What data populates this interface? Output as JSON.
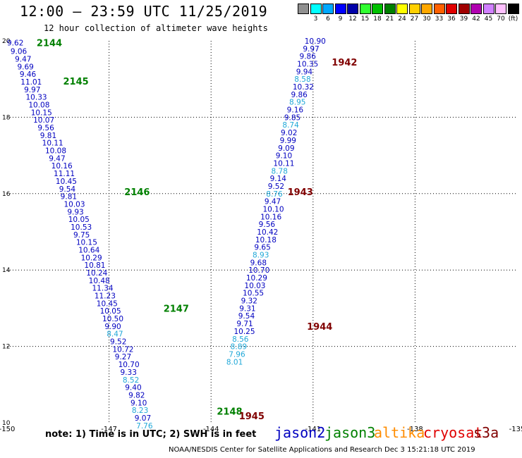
{
  "title": "12:00 – 23:59 UTC 11/25/2019",
  "subtitle": "12 hour collection of altimeter wave heights",
  "scale": {
    "unit": "(ft)",
    "swatches": [
      {
        "color": "#909090",
        "label": ""
      },
      {
        "color": "#00ffff",
        "label": "3"
      },
      {
        "color": "#00a8ff",
        "label": "6"
      },
      {
        "color": "#0000ff",
        "label": "9"
      },
      {
        "color": "#0000a8",
        "label": "12"
      },
      {
        "color": "#30ff30",
        "label": "15"
      },
      {
        "color": "#00c000",
        "label": "18"
      },
      {
        "color": "#008000",
        "label": "21"
      },
      {
        "color": "#ffff00",
        "label": "24"
      },
      {
        "color": "#ffd000",
        "label": "27"
      },
      {
        "color": "#ffa800",
        "label": "30"
      },
      {
        "color": "#ff6000",
        "label": "33"
      },
      {
        "color": "#e00000",
        "label": "36"
      },
      {
        "color": "#a00000",
        "label": "39"
      },
      {
        "color": "#b000b0",
        "label": "42"
      },
      {
        "color": "#d080ff",
        "label": "45"
      },
      {
        "color": "#ffc0ff",
        "label": "70"
      },
      {
        "color": "#000000",
        "label": "(ft)"
      }
    ]
  },
  "note": "note:  1) Time is in UTC;  2) SWH is in feet",
  "footer": "NOAA/NESDIS Center for Satellite Applications and Research    Dec  3 15:21:18 UTC 2019",
  "legend": [
    {
      "label": "jason2",
      "color": "#0000c0"
    },
    {
      "label": "jason3",
      "color": "#008000"
    },
    {
      "label": "altika",
      "color": "#ff8c00"
    },
    {
      "label": "cryosat",
      "color": "#e00000"
    },
    {
      "label": "s3a",
      "color": "#800000"
    }
  ],
  "chart_data": {
    "type": "scatter",
    "xlim": [
      -150,
      -135
    ],
    "ylim": [
      10,
      20
    ],
    "xticks": [
      "-150",
      "-147",
      "-144",
      "-141",
      "-138",
      "-135"
    ],
    "yticks": [
      "10",
      "12",
      "14",
      "16",
      "18",
      "20"
    ],
    "grid": true,
    "colors": {
      "dark": "#0000c0",
      "light": "#20a8d8",
      "time_track_left": "#008000",
      "time_track_right": "#800000"
    },
    "time_labels": [
      {
        "label": "2144",
        "lon": -149.13,
        "lat": 19.95,
        "color": "#008000"
      },
      {
        "label": "2145",
        "lon": -148.35,
        "lat": 18.95,
        "color": "#008000"
      },
      {
        "label": "2146",
        "lon": -146.55,
        "lat": 16.05,
        "color": "#008000"
      },
      {
        "label": "2147",
        "lon": -145.4,
        "lat": 13.0,
        "color": "#008000"
      },
      {
        "label": "2148",
        "lon": -143.83,
        "lat": 10.3,
        "color": "#008000"
      },
      {
        "label": "1942",
        "lon": -140.45,
        "lat": 19.45,
        "color": "#800000"
      },
      {
        "label": "1943",
        "lon": -141.75,
        "lat": 16.05,
        "color": "#800000"
      },
      {
        "label": "1944",
        "lon": -141.18,
        "lat": 12.53,
        "color": "#800000"
      },
      {
        "label": "1945",
        "lon": -143.18,
        "lat": 10.18,
        "color": "#800000"
      }
    ],
    "series": [
      {
        "name": "jason3",
        "points": [
          {
            "v": "9.62",
            "lon": -150.0,
            "lat": 19.95,
            "c": "dark"
          },
          {
            "v": "9.06",
            "lon": -149.9,
            "lat": 19.73,
            "c": "dark"
          },
          {
            "v": "9.47",
            "lon": -149.77,
            "lat": 19.53,
            "c": "dark"
          },
          {
            "v": "9.69",
            "lon": -149.7,
            "lat": 19.33,
            "c": "dark"
          },
          {
            "v": "9.46",
            "lon": -149.63,
            "lat": 19.13,
            "c": "dark"
          },
          {
            "v": "11.01",
            "lon": -149.6,
            "lat": 18.93,
            "c": "dark"
          },
          {
            "v": "9.97",
            "lon": -149.5,
            "lat": 18.73,
            "c": "dark"
          },
          {
            "v": "10.33",
            "lon": -149.45,
            "lat": 18.53,
            "c": "dark"
          },
          {
            "v": "10.08",
            "lon": -149.37,
            "lat": 18.33,
            "c": "dark"
          },
          {
            "v": "10.15",
            "lon": -149.3,
            "lat": 18.13,
            "c": "dark"
          },
          {
            "v": "10.07",
            "lon": -149.23,
            "lat": 17.93,
            "c": "dark"
          },
          {
            "v": "9.56",
            "lon": -149.1,
            "lat": 17.73,
            "c": "dark"
          },
          {
            "v": "9.81",
            "lon": -149.03,
            "lat": 17.53,
            "c": "dark"
          },
          {
            "v": "10.11",
            "lon": -148.97,
            "lat": 17.33,
            "c": "dark"
          },
          {
            "v": "10.08",
            "lon": -148.88,
            "lat": 17.13,
            "c": "dark"
          },
          {
            "v": "9.47",
            "lon": -148.77,
            "lat": 16.93,
            "c": "dark"
          },
          {
            "v": "10.16",
            "lon": -148.7,
            "lat": 16.73,
            "c": "dark"
          },
          {
            "v": "11.11",
            "lon": -148.63,
            "lat": 16.53,
            "c": "dark"
          },
          {
            "v": "10.45",
            "lon": -148.57,
            "lat": 16.33,
            "c": "dark"
          },
          {
            "v": "9.54",
            "lon": -148.47,
            "lat": 16.13,
            "c": "dark"
          },
          {
            "v": "9.81",
            "lon": -148.43,
            "lat": 15.93,
            "c": "dark"
          },
          {
            "v": "10.03",
            "lon": -148.33,
            "lat": 15.73,
            "c": "dark"
          },
          {
            "v": "9.93",
            "lon": -148.23,
            "lat": 15.53,
            "c": "dark"
          },
          {
            "v": "10.05",
            "lon": -148.2,
            "lat": 15.33,
            "c": "dark"
          },
          {
            "v": "10.53",
            "lon": -148.13,
            "lat": 15.13,
            "c": "dark"
          },
          {
            "v": "9.75",
            "lon": -148.05,
            "lat": 14.93,
            "c": "dark"
          },
          {
            "v": "10.15",
            "lon": -147.97,
            "lat": 14.73,
            "c": "dark"
          },
          {
            "v": "10.64",
            "lon": -147.9,
            "lat": 14.53,
            "c": "dark"
          },
          {
            "v": "10.29",
            "lon": -147.83,
            "lat": 14.33,
            "c": "dark"
          },
          {
            "v": "10.81",
            "lon": -147.73,
            "lat": 14.13,
            "c": "dark"
          },
          {
            "v": "10.24",
            "lon": -147.67,
            "lat": 13.93,
            "c": "dark"
          },
          {
            "v": "10.48",
            "lon": -147.6,
            "lat": 13.73,
            "c": "dark"
          },
          {
            "v": "11.34",
            "lon": -147.5,
            "lat": 13.53,
            "c": "dark"
          },
          {
            "v": "11.23",
            "lon": -147.43,
            "lat": 13.33,
            "c": "dark"
          },
          {
            "v": "10.45",
            "lon": -147.37,
            "lat": 13.13,
            "c": "dark"
          },
          {
            "v": "10.05",
            "lon": -147.27,
            "lat": 12.93,
            "c": "dark"
          },
          {
            "v": "10.50",
            "lon": -147.2,
            "lat": 12.73,
            "c": "dark"
          },
          {
            "v": "9.90",
            "lon": -147.13,
            "lat": 12.53,
            "c": "dark"
          },
          {
            "v": "8.47",
            "lon": -147.07,
            "lat": 12.33,
            "c": "light"
          },
          {
            "v": "9.52",
            "lon": -146.97,
            "lat": 12.13,
            "c": "dark"
          },
          {
            "v": "10.72",
            "lon": -146.9,
            "lat": 11.93,
            "c": "dark"
          },
          {
            "v": "9.27",
            "lon": -146.83,
            "lat": 11.73,
            "c": "dark"
          },
          {
            "v": "10.70",
            "lon": -146.73,
            "lat": 11.53,
            "c": "dark"
          },
          {
            "v": "9.33",
            "lon": -146.67,
            "lat": 11.33,
            "c": "dark"
          },
          {
            "v": "8.52",
            "lon": -146.6,
            "lat": 11.13,
            "c": "light"
          },
          {
            "v": "9.40",
            "lon": -146.53,
            "lat": 10.93,
            "c": "dark"
          },
          {
            "v": "9.82",
            "lon": -146.43,
            "lat": 10.73,
            "c": "dark"
          },
          {
            "v": "9.10",
            "lon": -146.37,
            "lat": 10.53,
            "c": "dark"
          },
          {
            "v": "8.23",
            "lon": -146.33,
            "lat": 10.33,
            "c": "light"
          },
          {
            "v": "9.07",
            "lon": -146.25,
            "lat": 10.13,
            "c": "dark"
          },
          {
            "v": "7.76",
            "lon": -146.2,
            "lat": 9.93,
            "c": "light"
          }
        ]
      },
      {
        "name": "s3a",
        "points": [
          {
            "v": "10.90",
            "lon": -141.25,
            "lat": 20.0,
            "c": "dark"
          },
          {
            "v": "9.97",
            "lon": -141.3,
            "lat": 19.8,
            "c": "dark"
          },
          {
            "v": "9.86",
            "lon": -141.4,
            "lat": 19.6,
            "c": "dark"
          },
          {
            "v": "10.35",
            "lon": -141.47,
            "lat": 19.4,
            "c": "dark"
          },
          {
            "v": "9.94",
            "lon": -141.5,
            "lat": 19.2,
            "c": "dark"
          },
          {
            "v": "8.58",
            "lon": -141.55,
            "lat": 19.0,
            "c": "light"
          },
          {
            "v": "10.32",
            "lon": -141.6,
            "lat": 18.8,
            "c": "dark"
          },
          {
            "v": "9.86",
            "lon": -141.65,
            "lat": 18.6,
            "c": "dark"
          },
          {
            "v": "8.95",
            "lon": -141.7,
            "lat": 18.4,
            "c": "light"
          },
          {
            "v": "9.16",
            "lon": -141.77,
            "lat": 18.2,
            "c": "dark"
          },
          {
            "v": "9.85",
            "lon": -141.85,
            "lat": 18.0,
            "c": "dark"
          },
          {
            "v": "8.74",
            "lon": -141.9,
            "lat": 17.8,
            "c": "light"
          },
          {
            "v": "9.02",
            "lon": -141.95,
            "lat": 17.6,
            "c": "dark"
          },
          {
            "v": "9.99",
            "lon": -141.98,
            "lat": 17.4,
            "c": "dark"
          },
          {
            "v": "9.09",
            "lon": -142.03,
            "lat": 17.2,
            "c": "dark"
          },
          {
            "v": "9.10",
            "lon": -142.1,
            "lat": 17.0,
            "c": "dark"
          },
          {
            "v": "10.11",
            "lon": -142.17,
            "lat": 16.8,
            "c": "dark"
          },
          {
            "v": "8.78",
            "lon": -142.23,
            "lat": 16.6,
            "c": "light"
          },
          {
            "v": "9.14",
            "lon": -142.27,
            "lat": 16.4,
            "c": "dark"
          },
          {
            "v": "9.52",
            "lon": -142.33,
            "lat": 16.2,
            "c": "dark"
          },
          {
            "v": "8.76",
            "lon": -142.38,
            "lat": 16.0,
            "c": "light"
          },
          {
            "v": "9.47",
            "lon": -142.43,
            "lat": 15.8,
            "c": "dark"
          },
          {
            "v": "10.10",
            "lon": -142.48,
            "lat": 15.6,
            "c": "dark"
          },
          {
            "v": "10.16",
            "lon": -142.55,
            "lat": 15.4,
            "c": "dark"
          },
          {
            "v": "9.56",
            "lon": -142.6,
            "lat": 15.2,
            "c": "dark"
          },
          {
            "v": "10.42",
            "lon": -142.65,
            "lat": 15.0,
            "c": "dark"
          },
          {
            "v": "10.18",
            "lon": -142.7,
            "lat": 14.8,
            "c": "dark"
          },
          {
            "v": "9.65",
            "lon": -142.73,
            "lat": 14.6,
            "c": "dark"
          },
          {
            "v": "8.93",
            "lon": -142.78,
            "lat": 14.4,
            "c": "light"
          },
          {
            "v": "9.68",
            "lon": -142.85,
            "lat": 14.2,
            "c": "dark"
          },
          {
            "v": "10.70",
            "lon": -142.9,
            "lat": 14.0,
            "c": "dark"
          },
          {
            "v": "10.29",
            "lon": -142.97,
            "lat": 13.8,
            "c": "dark"
          },
          {
            "v": "10.03",
            "lon": -143.02,
            "lat": 13.6,
            "c": "dark"
          },
          {
            "v": "10.55",
            "lon": -143.07,
            "lat": 13.4,
            "c": "dark"
          },
          {
            "v": "9.32",
            "lon": -143.12,
            "lat": 13.2,
            "c": "dark"
          },
          {
            "v": "9.31",
            "lon": -143.17,
            "lat": 13.0,
            "c": "dark"
          },
          {
            "v": "9.54",
            "lon": -143.2,
            "lat": 12.8,
            "c": "dark"
          },
          {
            "v": "9.71",
            "lon": -143.25,
            "lat": 12.6,
            "c": "dark"
          },
          {
            "v": "10.25",
            "lon": -143.33,
            "lat": 12.4,
            "c": "dark"
          },
          {
            "v": "8.56",
            "lon": -143.38,
            "lat": 12.2,
            "c": "light"
          },
          {
            "v": "8.89",
            "lon": -143.43,
            "lat": 12.0,
            "c": "light"
          },
          {
            "v": "7.96",
            "lon": -143.48,
            "lat": 11.8,
            "c": "light"
          },
          {
            "v": "8.01",
            "lon": -143.55,
            "lat": 11.6,
            "c": "light"
          }
        ]
      }
    ]
  }
}
